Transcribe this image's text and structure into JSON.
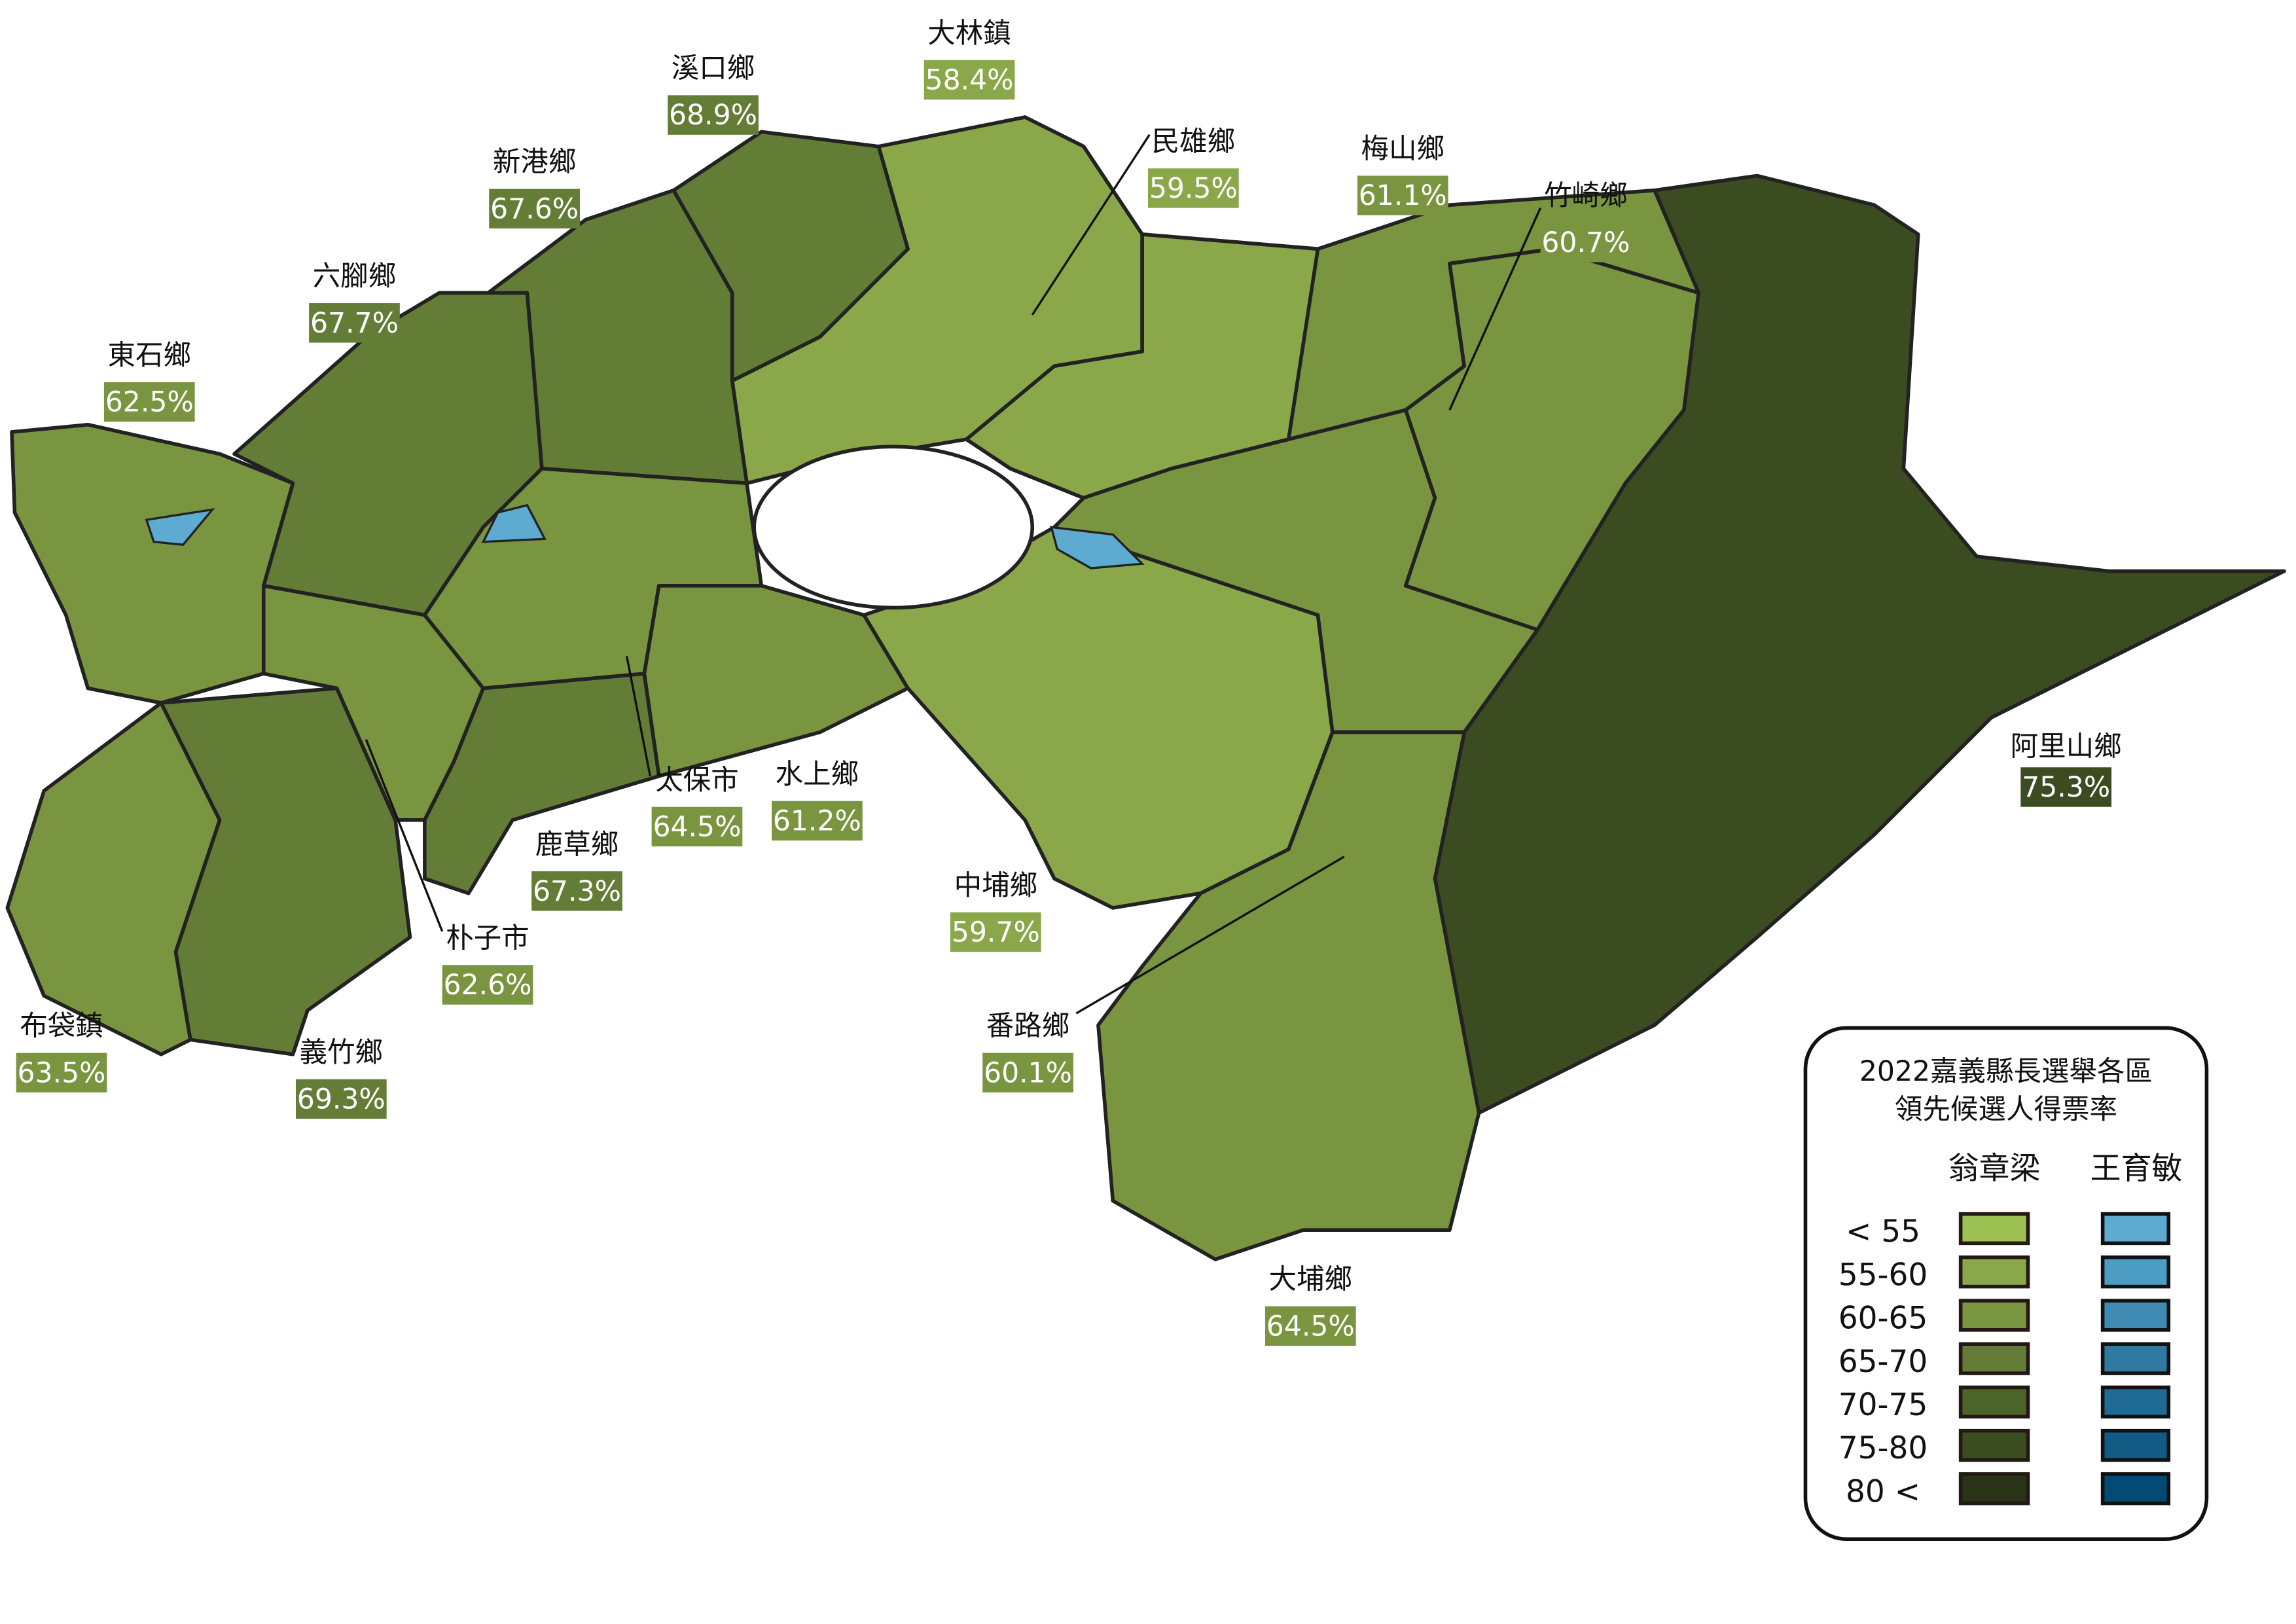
{
  "legend": {
    "title_line1": "2022嘉義縣長選舉各區",
    "title_line2": "領先候選人得票率",
    "candidates": [
      {
        "name": "翁章梁",
        "colors": [
          "#9dc153",
          "#8aa84a",
          "#7a9540",
          "#637d36",
          "#4d6429",
          "#3a4c20",
          "#283318"
        ]
      },
      {
        "name": "王育敏",
        "colors": [
          "#5dabd1",
          "#4d9cc3",
          "#3f8bb4",
          "#2f7aa2",
          "#206b95",
          "#115b85",
          "#034a74"
        ]
      }
    ],
    "bins": [
      "< 55",
      "55-60",
      "60-65",
      "65-70",
      "70-75",
      "75-80",
      "80 <"
    ]
  },
  "townships": [
    {
      "name": "大林鎮",
      "pct": "58.4%",
      "value": 58.4,
      "leader": "翁章梁"
    },
    {
      "name": "溪口鄉",
      "pct": "68.9%",
      "value": 68.9,
      "leader": "翁章梁"
    },
    {
      "name": "新港鄉",
      "pct": "67.6%",
      "value": 67.6,
      "leader": "翁章梁"
    },
    {
      "name": "六腳鄉",
      "pct": "67.7%",
      "value": 67.7,
      "leader": "翁章梁"
    },
    {
      "name": "東石鄉",
      "pct": "62.5%",
      "value": 62.5,
      "leader": "翁章梁"
    },
    {
      "name": "布袋鎮",
      "pct": "63.5%",
      "value": 63.5,
      "leader": "翁章梁"
    },
    {
      "name": "義竹鄉",
      "pct": "69.3%",
      "value": 69.3,
      "leader": "翁章梁"
    },
    {
      "name": "朴子市",
      "pct": "62.6%",
      "value": 62.6,
      "leader": "翁章梁"
    },
    {
      "name": "鹿草鄉",
      "pct": "67.3%",
      "value": 67.3,
      "leader": "翁章梁"
    },
    {
      "name": "太保市",
      "pct": "64.5%",
      "value": 64.5,
      "leader": "翁章梁"
    },
    {
      "name": "水上鄉",
      "pct": "61.2%",
      "value": 61.2,
      "leader": "翁章梁"
    },
    {
      "name": "中埔鄉",
      "pct": "59.7%",
      "value": 59.7,
      "leader": "翁章梁"
    },
    {
      "name": "番路鄉",
      "pct": "60.1%",
      "value": 60.1,
      "leader": "翁章梁"
    },
    {
      "name": "大埔鄉",
      "pct": "64.5%",
      "value": 64.5,
      "leader": "翁章梁"
    },
    {
      "name": "阿里山鄉",
      "pct": "75.3%",
      "value": 75.3,
      "leader": "翁章梁"
    },
    {
      "name": "竹崎鄉",
      "pct": "60.7%",
      "value": 60.7,
      "leader": "翁章梁"
    },
    {
      "name": "梅山鄉",
      "pct": "61.1%",
      "value": 61.1,
      "leader": "翁章梁"
    },
    {
      "name": "民雄鄉",
      "pct": "59.5%",
      "value": 59.5,
      "leader": "翁章梁"
    }
  ]
}
